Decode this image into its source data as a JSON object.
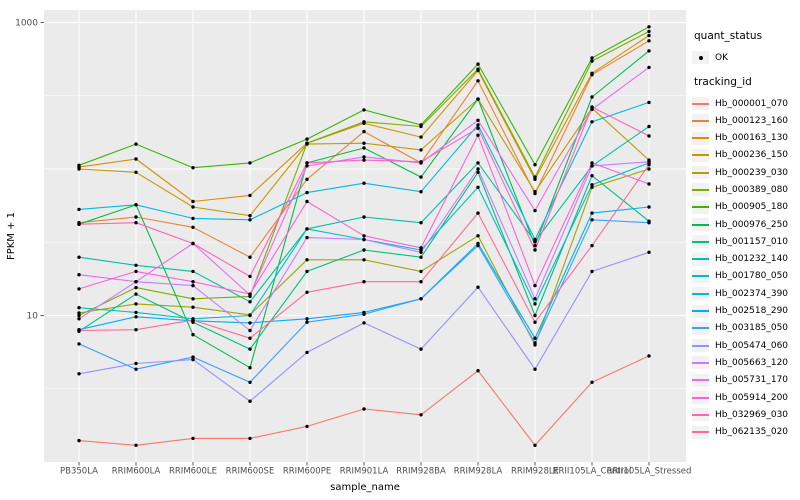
{
  "figure": {
    "y_axis": {
      "title": "FPKM + 1",
      "tick_labels": [
        "1000",
        "10"
      ],
      "tick_values": [
        1000,
        10
      ]
    },
    "x_axis": {
      "title": "sample_name"
    },
    "legend": {
      "quant_status": {
        "title": "quant_status",
        "items": [
          {
            "label": "OK",
            "marker": "black-point"
          }
        ]
      },
      "tracking_id": {
        "title": "tracking_id"
      }
    }
  },
  "chart_data": {
    "type": "line",
    "title": "",
    "xlabel": "sample_name",
    "ylabel": "FPKM + 1",
    "y_scale": "log10",
    "ylim": [
      1,
      1220
    ],
    "grid": true,
    "legend_position": "right",
    "panel_background": "#EBEBEB",
    "gridline_color": "#FFFFFF",
    "tick_color": "#333333",
    "tick_label_color": "#4D4D4D",
    "point_color": "#000000",
    "y_major_gridlines": [
      10,
      100,
      1000
    ],
    "y_minor_gridlines": [
      3.162,
      31.62,
      316.2
    ],
    "categories": [
      "PB350LA",
      "RRIM600LA",
      "RRIM600LE",
      "RRIM600SE",
      "RRIM600PE",
      "RRIM901LA",
      "RRIM928BA",
      "RRIM928LA",
      "RRIM928LE",
      "RRII105LA_Control",
      "RRII105LA_Stressed"
    ],
    "series": [
      {
        "name": "Hb_000001_070",
        "color": "#F8766D",
        "quant_status": "OK",
        "values": [
          1.4,
          1.3,
          1.45,
          1.45,
          1.75,
          2.3,
          2.1,
          4.2,
          1.3,
          3.5,
          5.3
        ]
      },
      {
        "name": "Hb_000123_160",
        "color": "#EA8331",
        "quant_status": "OK",
        "values": [
          43,
          47,
          40,
          25,
          85,
          180,
          110,
          400,
          68,
          440,
          750
        ]
      },
      {
        "name": "Hb_000163_130",
        "color": "#D89000",
        "quant_status": "OK",
        "values": [
          103,
          117,
          60,
          66,
          150,
          205,
          165,
          470,
          85,
          450,
          815
        ]
      },
      {
        "name": "Hb_000236_150",
        "color": "#C09B00",
        "quant_status": "OK",
        "values": [
          100,
          95,
          55,
          48,
          148,
          150,
          135,
          300,
          70,
          260,
          115
        ]
      },
      {
        "name": "Hb_000239_030",
        "color": "#A3A500",
        "quant_status": "OK",
        "values": [
          10.4,
          12,
          11.4,
          10.1,
          24,
          24,
          20,
          35,
          6.3,
          75,
          100
        ]
      },
      {
        "name": "Hb_000389_080",
        "color": "#7CAE00",
        "quant_status": "OK",
        "values": [
          10,
          15.5,
          13,
          13.5,
          150,
          210,
          195,
          480,
          88,
          545,
          870
        ]
      },
      {
        "name": "Hb_000905_180",
        "color": "#39B600",
        "quant_status": "OK",
        "values": [
          106,
          148,
          102,
          110,
          160,
          253,
          200,
          520,
          107,
          572,
          935
        ]
      },
      {
        "name": "Hb_000976_250",
        "color": "#00BB4E",
        "quant_status": "OK",
        "values": [
          42,
          57,
          7.4,
          4.4,
          110,
          139,
          88,
          300,
          30,
          310,
          640
        ]
      },
      {
        "name": "Hb_001157_010",
        "color": "#00BF7D",
        "quant_status": "OK",
        "values": [
          7.8,
          14,
          9,
          5.9,
          20,
          28,
          25,
          95,
          10,
          90,
          44
        ]
      },
      {
        "name": "Hb_001232_140",
        "color": "#00C1A3",
        "quant_status": "OK",
        "values": [
          25,
          22,
          20,
          12.4,
          39,
          47,
          43,
          110,
          32,
          105,
          195
        ]
      },
      {
        "name": "Hb_001780_050",
        "color": "#00BFC4",
        "quant_status": "OK",
        "values": [
          11.3,
          10.5,
          9.5,
          10,
          39,
          33,
          28,
          75,
          12,
          78,
          110
        ]
      },
      {
        "name": "Hb_002374_390",
        "color": "#00BAE0",
        "quant_status": "OK",
        "values": [
          53,
          57,
          46,
          45,
          69,
          80,
          70,
          200,
          33,
          210,
          285
        ]
      },
      {
        "name": "Hb_002518_290",
        "color": "#00B0F6",
        "quant_status": "OK",
        "values": [
          8,
          9.8,
          9.2,
          8.9,
          9.5,
          10.5,
          13,
          31,
          7,
          50,
          55
        ]
      },
      {
        "name": "Hb_003185_050",
        "color": "#35A2FF",
        "quant_status": "OK",
        "values": [
          6.4,
          4.3,
          5.2,
          3.5,
          9,
          10.2,
          13,
          30,
          6.5,
          45,
          43
        ]
      },
      {
        "name": "Hb_005474_060",
        "color": "#9590FF",
        "quant_status": "OK",
        "values": [
          4.0,
          4.7,
          5.0,
          2.6,
          5.6,
          8.9,
          5.9,
          15.6,
          4.3,
          20,
          27
        ]
      },
      {
        "name": "Hb_005663_120",
        "color": "#C77CFF",
        "quant_status": "OK",
        "values": [
          9.5,
          17,
          16,
          7.9,
          34,
          33,
          27,
          100,
          13,
          105,
          112
        ]
      },
      {
        "name": "Hb_005731_170",
        "color": "#E76BF3",
        "quant_status": "OK",
        "values": [
          19,
          17,
          31,
          13.8,
          105,
          121,
          110,
          215,
          52,
          255,
          494
        ]
      },
      {
        "name": "Hb_005914_200",
        "color": "#FA62DB",
        "quant_status": "OK",
        "values": [
          15.2,
          20,
          17,
          14,
          60,
          35,
          29,
          170,
          16,
          110,
          79
        ]
      },
      {
        "name": "Hb_032969_030",
        "color": "#FF62BC",
        "quant_status": "OK",
        "values": [
          42,
          43,
          31,
          18.5,
          110,
          115,
          112,
          190,
          28,
          265,
          168
        ]
      },
      {
        "name": "Hb_062135_020",
        "color": "#FF6A98",
        "quant_status": "OK",
        "values": [
          7.9,
          8,
          9.3,
          7.0,
          14.4,
          17,
          17,
          50,
          9,
          30,
          107
        ]
      }
    ]
  }
}
